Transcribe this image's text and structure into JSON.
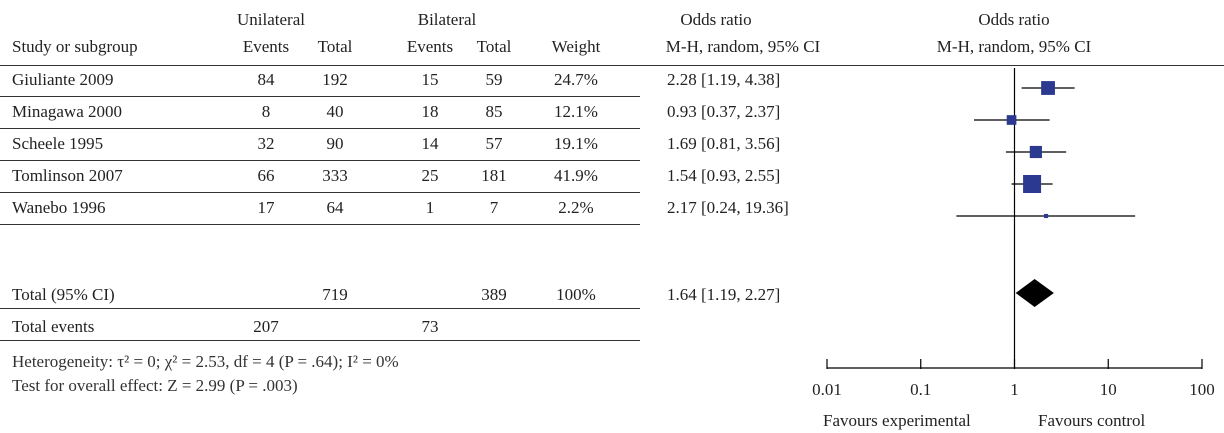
{
  "header": {
    "group1": "Unilateral",
    "group2": "Bilateral",
    "study_col": "Study or subgroup",
    "events": "Events",
    "total": "Total",
    "weight": "Weight",
    "or_title": "Odds ratio",
    "or_method": "M-H, random, 95% CI",
    "plot_title": "Odds ratio",
    "plot_method": "M-H, random, 95% CI"
  },
  "studies": [
    {
      "name": "Giuliante 2009",
      "ev1": "84",
      "tot1": "192",
      "ev2": "15",
      "tot2": "59",
      "weight": "24.7%",
      "or_text": "2.28 [1.19, 4.38]"
    },
    {
      "name": "Minagawa 2000",
      "ev1": "8",
      "tot1": "40",
      "ev2": "18",
      "tot2": "85",
      "weight": "12.1%",
      "or_text": "0.93 [0.37, 2.37]"
    },
    {
      "name": "Scheele 1995",
      "ev1": "32",
      "tot1": "90",
      "ev2": "14",
      "tot2": "57",
      "weight": "19.1%",
      "or_text": "1.69 [0.81, 3.56]"
    },
    {
      "name": "Tomlinson 2007",
      "ev1": "66",
      "tot1": "333",
      "ev2": "25",
      "tot2": "181",
      "weight": "41.9%",
      "or_text": "1.54 [0.93, 2.55]"
    },
    {
      "name": "Wanebo 1996",
      "ev1": "17",
      "tot1": "64",
      "ev2": "1",
      "tot2": "7",
      "weight": "2.2%",
      "or_text": "2.17 [0.24, 19.36]"
    }
  ],
  "total": {
    "name": "Total (95% CI)",
    "tot1": "719",
    "tot2": "389",
    "weight": "100%",
    "or_text": "1.64 [1.19, 2.27]"
  },
  "total_events": {
    "name": "Total events",
    "ev1": "207",
    "ev2": "73"
  },
  "footer": {
    "heterogeneity": "Heterogeneity: τ² = 0; χ² = 2.53, df = 4 (P = .64); I² = 0%",
    "overall": "Test for overall effect: Z = 2.99 (P = .003)"
  },
  "axis": {
    "favours_left": "Favours experimental",
    "favours_right": "Favours control"
  },
  "colors": {
    "marker": "#2b3990",
    "diamond": "#000000",
    "line": "#000000"
  },
  "chart_data": {
    "type": "scatter",
    "scale": "log",
    "xlim": [
      0.01,
      100
    ],
    "ticks": [
      0.01,
      0.1,
      1,
      10,
      100
    ],
    "tick_labels": [
      "0.01",
      "0.1",
      "1",
      "10",
      "100"
    ],
    "reference_line": 1,
    "series": [
      {
        "name": "Giuliante 2009",
        "or": 2.28,
        "lo": 1.19,
        "hi": 4.38,
        "weight": 24.7
      },
      {
        "name": "Minagawa 2000",
        "or": 0.93,
        "lo": 0.37,
        "hi": 2.37,
        "weight": 12.1
      },
      {
        "name": "Scheele 1995",
        "or": 1.69,
        "lo": 0.81,
        "hi": 3.56,
        "weight": 19.1
      },
      {
        "name": "Tomlinson 2007",
        "or": 1.54,
        "lo": 0.93,
        "hi": 2.55,
        "weight": 41.9
      },
      {
        "name": "Wanebo 1996",
        "or": 2.17,
        "lo": 0.24,
        "hi": 19.36,
        "weight": 2.2
      }
    ],
    "pooled": {
      "name": "Total (95% CI)",
      "or": 1.64,
      "lo": 1.19,
      "hi": 2.27
    }
  }
}
